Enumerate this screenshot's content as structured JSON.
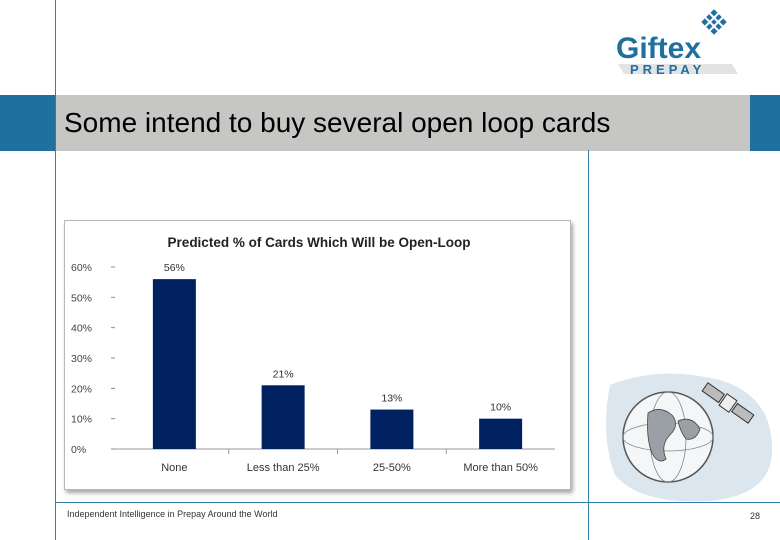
{
  "slide": {
    "title": "Some intend to buy several open loop cards",
    "footer": "Independent Intelligence in Prepay Around the World",
    "page_number": "28"
  },
  "logo": {
    "line1": "Giftex",
    "line2": "PREPAY",
    "color": "#1f6f9f"
  },
  "colors": {
    "bar": "#002060",
    "title_band": "#1f6f9f",
    "title_box": "#c6c7c4"
  },
  "chart_data": {
    "type": "bar",
    "title": "Predicted % of Cards Which Will be Open-Loop",
    "categories": [
      "None",
      "Less than 25%",
      "25-50%",
      "More than 50%"
    ],
    "values": [
      56,
      21,
      13,
      10
    ],
    "data_labels": [
      "56%",
      "21%",
      "13%",
      "10%"
    ],
    "ylim": [
      0,
      60
    ],
    "yticks": [
      "0%",
      "10%",
      "20%",
      "30%",
      "40%",
      "50%",
      "60%"
    ],
    "xlabel": "",
    "ylabel": "",
    "legend": "none",
    "grid": false
  }
}
